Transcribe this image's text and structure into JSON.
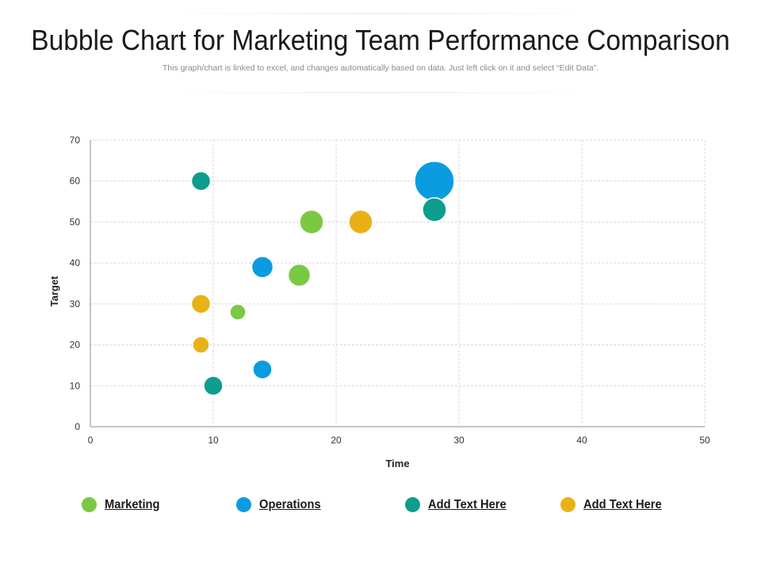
{
  "header": {
    "title": "Bubble Chart for Marketing Team Performance Comparison",
    "subtitle": "This graph/chart is linked to excel, and changes automatically based on data. Just left click on it and select “Edit Data”."
  },
  "chart_data": {
    "type": "scatter",
    "title": "",
    "xlabel": "Time",
    "ylabel": "Target",
    "xlim": [
      0,
      50
    ],
    "ylim": [
      0,
      70
    ],
    "x_ticks": [
      "0",
      "10",
      "20",
      "30",
      "40",
      "50"
    ],
    "y_ticks": [
      "0",
      "10",
      "20",
      "30",
      "40",
      "50",
      "60",
      "70"
    ],
    "grid": true,
    "legend_position": "bottom",
    "series": [
      {
        "name": "Marketing",
        "color": "#7ac943",
        "points": [
          {
            "x": 12,
            "y": 28,
            "size": 20
          },
          {
            "x": 17,
            "y": 37,
            "size": 28
          },
          {
            "x": 18,
            "y": 50,
            "size": 30
          }
        ]
      },
      {
        "name": "Operations",
        "color": "#0b9ce0",
        "points": [
          {
            "x": 14,
            "y": 14,
            "size": 24
          },
          {
            "x": 14,
            "y": 39,
            "size": 27
          },
          {
            "x": 28,
            "y": 60,
            "size": 50
          }
        ]
      },
      {
        "name": "Add Text Here",
        "color": "#0c9d8c",
        "points": [
          {
            "x": 9,
            "y": 60,
            "size": 24
          },
          {
            "x": 10,
            "y": 10,
            "size": 24
          },
          {
            "x": 28,
            "y": 53,
            "size": 30
          }
        ]
      },
      {
        "name": "Add Text Here",
        "color": "#e8b217",
        "points": [
          {
            "x": 9,
            "y": 20,
            "size": 21
          },
          {
            "x": 9,
            "y": 30,
            "size": 24
          },
          {
            "x": 22,
            "y": 50,
            "size": 30
          }
        ]
      }
    ]
  }
}
